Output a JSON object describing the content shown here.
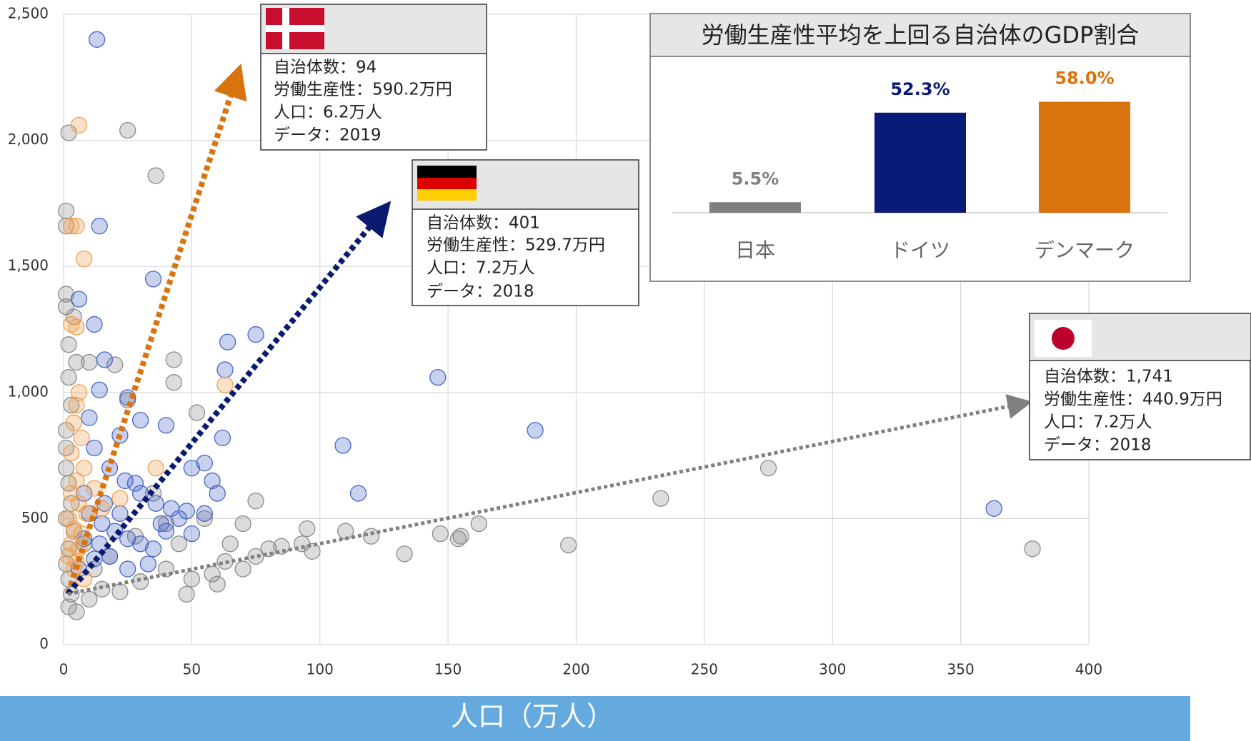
{
  "chart_data": [
    {
      "type": "scatter",
      "x_label": "人口（万人）",
      "xlim": [
        0,
        400
      ],
      "xticks": [
        0,
        50,
        100,
        150,
        200,
        250,
        300,
        350,
        400
      ],
      "ylim": [
        0,
        2500
      ],
      "yticks": [
        0,
        500,
        {
          "value": 1000,
          "label": "1,000"
        },
        {
          "value": 1500,
          "label": "1,500"
        },
        {
          "value": 2000,
          "label": "2,000"
        },
        {
          "value": 2500,
          "label": "2,500"
        }
      ],
      "grid": true,
      "series": [
        {
          "color": "#8c8c8c",
          "x": [
            2,
            25,
            36,
            1,
            1,
            1,
            1,
            4,
            2,
            5,
            2,
            10,
            43,
            43,
            20,
            3,
            1,
            1,
            1,
            2,
            3,
            1,
            4,
            2,
            1,
            2,
            3,
            2,
            5,
            10,
            15,
            22,
            30,
            40,
            50,
            60,
            63,
            70,
            75,
            80,
            75,
            70,
            95,
            93,
            97,
            110,
            120,
            133,
            147,
            154,
            155,
            162,
            197,
            233,
            275,
            378,
            52,
            25,
            35,
            45,
            55,
            8,
            12,
            18,
            28,
            40,
            48,
            58,
            65,
            85
          ],
          "values": [
            2030,
            2040,
            1860,
            1720,
            1660,
            1390,
            1340,
            1300,
            1190,
            1120,
            1060,
            1120,
            1130,
            1040,
            1110,
            950,
            850,
            780,
            700,
            640,
            560,
            500,
            450,
            380,
            320,
            260,
            200,
            150,
            130,
            180,
            220,
            210,
            250,
            300,
            260,
            240,
            330,
            300,
            350,
            380,
            570,
            480,
            460,
            400,
            370,
            450,
            430,
            360,
            440,
            420,
            430,
            480,
            395,
            580,
            700,
            380,
            920,
            970,
            600,
            400,
            500,
            400,
            300,
            350,
            430,
            480,
            200,
            280,
            400,
            390
          ]
        },
        {
          "color": "#4a66c8",
          "x": [
            13,
            14,
            35,
            6,
            12,
            75,
            64,
            16,
            63,
            146,
            14,
            25,
            30,
            40,
            22,
            109,
            184,
            115,
            363,
            10,
            12,
            18,
            24,
            30,
            36,
            42,
            48,
            55,
            60,
            58,
            8,
            10,
            15,
            20,
            25,
            30,
            35,
            40,
            45,
            50,
            18,
            12,
            25,
            33,
            8,
            6,
            55,
            62,
            50,
            28,
            16,
            22,
            38,
            14
          ],
          "values": [
            2400,
            1660,
            1450,
            1370,
            1270,
            1230,
            1200,
            1130,
            1090,
            1060,
            1010,
            980,
            890,
            870,
            830,
            790,
            850,
            600,
            540,
            900,
            780,
            700,
            650,
            600,
            560,
            540,
            530,
            520,
            600,
            650,
            600,
            520,
            480,
            450,
            420,
            400,
            380,
            450,
            500,
            440,
            350,
            340,
            300,
            320,
            420,
            300,
            720,
            820,
            700,
            640,
            560,
            520,
            480,
            400
          ]
        },
        {
          "color": "#f0a050",
          "x": [
            6,
            3,
            5,
            8,
            3,
            5,
            63,
            6,
            5,
            4,
            7,
            3,
            8,
            5,
            3,
            6,
            9,
            2,
            4,
            7,
            3,
            6,
            2,
            5,
            4,
            8,
            22,
            36,
            12,
            15
          ],
          "values": [
            2060,
            1660,
            1660,
            1530,
            1270,
            1260,
            1030,
            1000,
            950,
            880,
            820,
            760,
            700,
            650,
            600,
            560,
            520,
            500,
            460,
            440,
            400,
            380,
            350,
            330,
            300,
            260,
            580,
            700,
            620,
            540
          ]
        }
      ],
      "annotations": [
        {
          "lines": [
            "自治体数：94",
            "労働生産性：590.2万円",
            "人口：6.2万人",
            "データ：2019"
          ]
        },
        {
          "lines": [
            "自治体数：401",
            "労働生産性：529.7万円",
            "人口：7.2万人",
            "データ：2018"
          ]
        },
        {
          "lines": [
            "自治体数：1,741",
            "労働生産性：440.9万円",
            "人口：7.2万人",
            "データ：2018"
          ]
        }
      ]
    },
    {
      "type": "bar",
      "title": "労働生産性平均を上回る自治体のGDP割合",
      "categories": [
        "日本",
        "ドイツ",
        "デンマーク"
      ],
      "values": [
        5.5,
        52.3,
        58.0
      ],
      "value_labels": [
        "5.5%",
        "52.3%",
        "58.0%"
      ],
      "colors": [
        "#808080",
        "#0a1a78",
        "#d9730d"
      ]
    }
  ]
}
